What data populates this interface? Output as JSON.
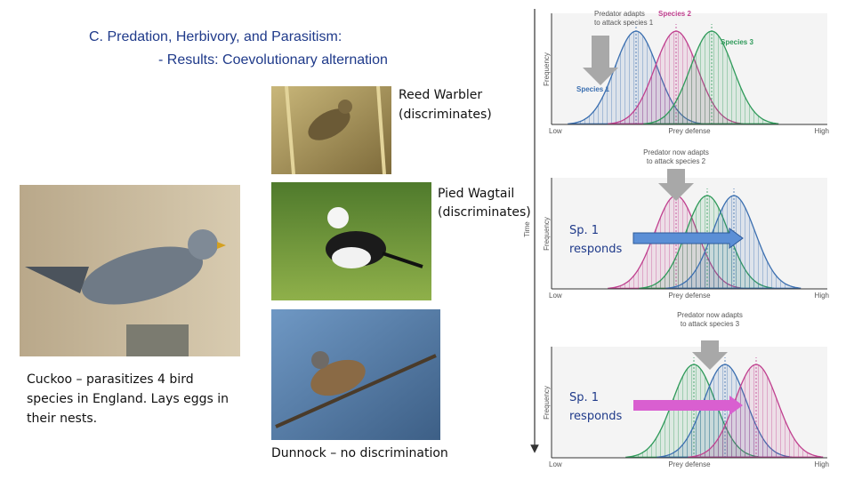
{
  "title": {
    "line1": "C. Predation, Herbivory, and Parasitism:",
    "line2": "- Results: Coevolutionary alternation"
  },
  "birds": [
    {
      "name": "Reed Warbler",
      "note": "(discriminates)"
    },
    {
      "name": "Pied Wagtail",
      "note": "(discriminates)"
    },
    {
      "name": "Dunnock – no discrimination"
    }
  ],
  "cuckoo_caption": [
    "Cuckoo – parasitizes 4 bird",
    "species in England.  Lays eggs in",
    "their nests."
  ],
  "figure": {
    "time_label": "Time",
    "panels": [
      {
        "annotation": [
          "Predator adapts",
          "to attack species 1"
        ],
        "species_labels": [
          "Species 2",
          "Species 3",
          "Species 1"
        ],
        "y_label": "Frequency",
        "x_low": "Low",
        "x_label": "Prey defense",
        "x_high": "High"
      },
      {
        "annotation": [
          "Predator now adapts",
          "to attack species 2"
        ],
        "response": [
          "Sp. 1",
          "responds"
        ],
        "y_label": "Frequency",
        "x_low": "Low",
        "x_label": "Prey defense",
        "x_high": "High"
      },
      {
        "annotation": [
          "Predator now adapts",
          "to attack species 3"
        ],
        "response": [
          "Sp. 1",
          "responds"
        ],
        "y_label": "Frequency",
        "x_low": "Low",
        "x_label": "Prey defense",
        "x_high": "High"
      }
    ]
  }
}
